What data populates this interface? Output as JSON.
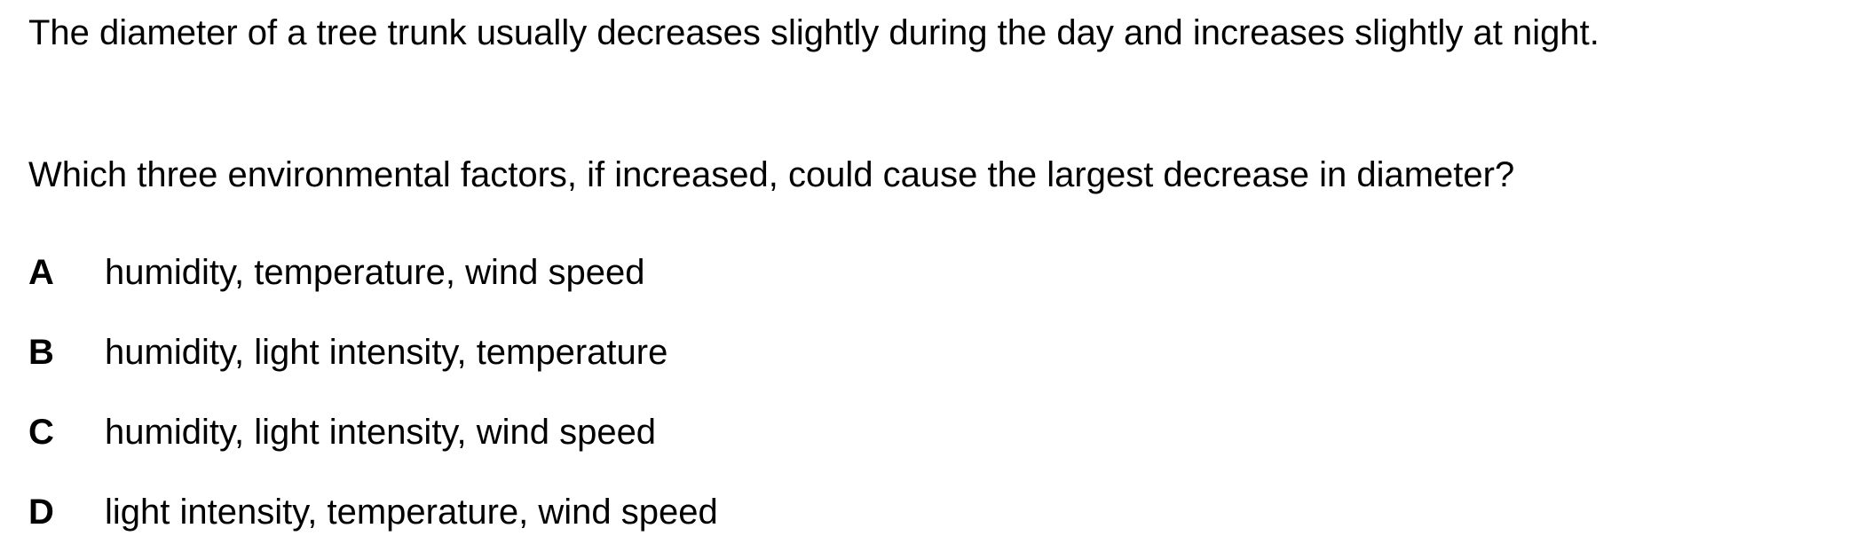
{
  "stem": "The diameter of a tree trunk usually decreases slightly during the day and increases slightly at night.",
  "question": "Which three environmental factors, if increased, could cause the largest decrease in diameter?",
  "options": [
    {
      "letter": "A",
      "text": "humidity, temperature, wind speed"
    },
    {
      "letter": "B",
      "text": "humidity, light intensity, temperature"
    },
    {
      "letter": "C",
      "text": "humidity, light intensity, wind speed"
    },
    {
      "letter": "D",
      "text": "light intensity, temperature, wind speed"
    }
  ]
}
